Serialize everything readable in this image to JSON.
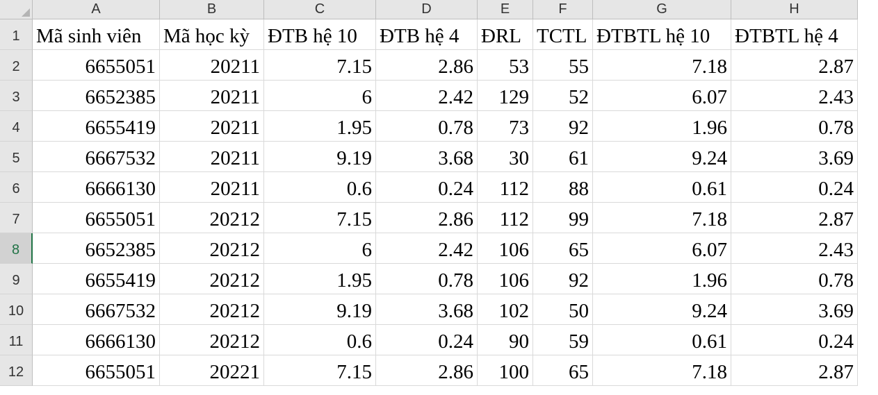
{
  "columns": [
    "A",
    "B",
    "C",
    "D",
    "E",
    "F",
    "G",
    "H"
  ],
  "row_numbers": [
    "1",
    "2",
    "3",
    "4",
    "5",
    "6",
    "7",
    "8",
    "9",
    "10",
    "11",
    "12"
  ],
  "active_row": 8,
  "header_row": [
    "Mã sinh viên",
    "Mã học kỳ",
    "ĐTB hệ 10",
    "ĐTB hệ 4",
    "ĐRL",
    "TCTL",
    "ĐTBTL hệ 10",
    "ĐTBTL hệ 4"
  ],
  "rows": [
    [
      "6655051",
      "20211",
      "7.15",
      "2.86",
      "53",
      "55",
      "7.18",
      "2.87"
    ],
    [
      "6652385",
      "20211",
      "6",
      "2.42",
      "129",
      "52",
      "6.07",
      "2.43"
    ],
    [
      "6655419",
      "20211",
      "1.95",
      "0.78",
      "73",
      "92",
      "1.96",
      "0.78"
    ],
    [
      "6667532",
      "20211",
      "9.19",
      "3.68",
      "30",
      "61",
      "9.24",
      "3.69"
    ],
    [
      "6666130",
      "20211",
      "0.6",
      "0.24",
      "112",
      "88",
      "0.61",
      "0.24"
    ],
    [
      "6655051",
      "20212",
      "7.15",
      "2.86",
      "112",
      "99",
      "7.18",
      "2.87"
    ],
    [
      "6652385",
      "20212",
      "6",
      "2.42",
      "106",
      "65",
      "6.07",
      "2.43"
    ],
    [
      "6655419",
      "20212",
      "1.95",
      "0.78",
      "106",
      "92",
      "1.96",
      "0.78"
    ],
    [
      "6667532",
      "20212",
      "9.19",
      "3.68",
      "102",
      "50",
      "9.24",
      "3.69"
    ],
    [
      "6666130",
      "20212",
      "0.6",
      "0.24",
      "90",
      "59",
      "0.61",
      "0.24"
    ],
    [
      "6655051",
      "20221",
      "7.15",
      "2.86",
      "100",
      "65",
      "7.18",
      "2.87"
    ]
  ]
}
